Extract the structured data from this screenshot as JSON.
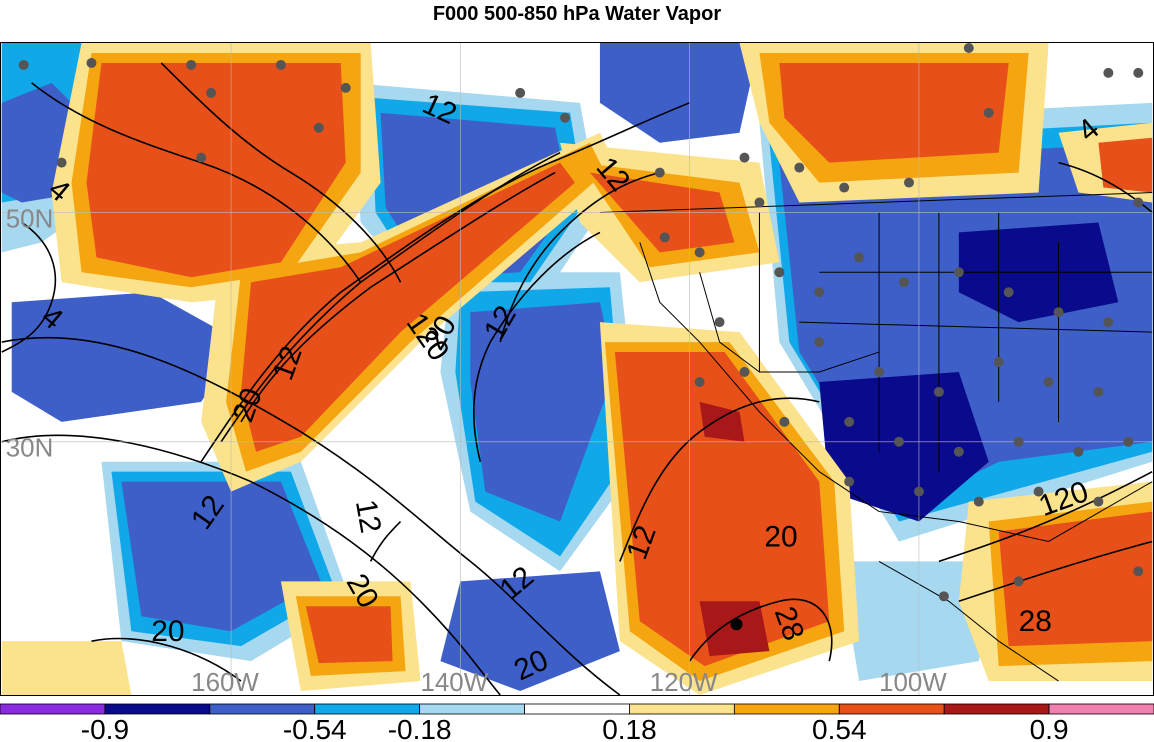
{
  "title": "F000 500-850 hPa Water Vapor",
  "lat_labels": [
    "50N",
    "30N"
  ],
  "lon_labels": [
    "160W",
    "140W",
    "120W",
    "100W"
  ],
  "contour_labels": [
    "12",
    "12",
    "4",
    "4",
    "20",
    "12",
    "120",
    "20",
    "12",
    "12",
    "20",
    "20",
    "28",
    "12",
    "20",
    "12",
    "120",
    "28",
    "20",
    "12",
    "4"
  ],
  "colorbar": {
    "colors": [
      "#8a2be2",
      "#0a0a8c",
      "#3f5fc8",
      "#10a8e8",
      "#a6d8f0",
      "#ffffff",
      "#fbe28c",
      "#f5a50f",
      "#e8501a",
      "#a81818",
      "#f080b0"
    ],
    "tick_labels": [
      "-0.9",
      "-0.54",
      "-0.18",
      "0.18",
      "0.54",
      "0.9"
    ]
  }
}
